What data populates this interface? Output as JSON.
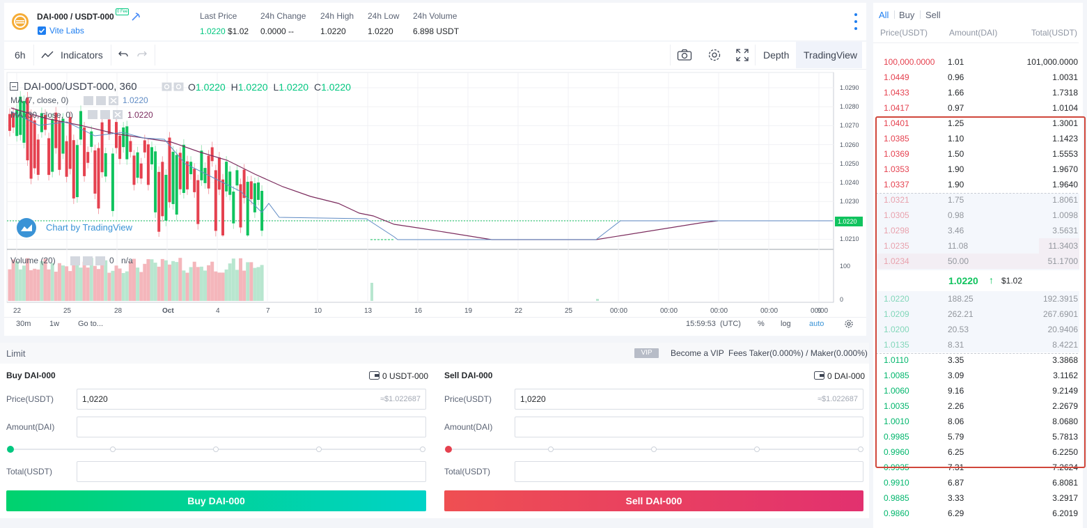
{
  "header": {
    "pair": "DAI-000 / USDT-000",
    "fee_badge": "0 Fee",
    "issuer": "Vite Labs",
    "stats": [
      {
        "label": "Last Price",
        "value": "1.0220",
        "extra": "$1.02"
      },
      {
        "label": "24h Change",
        "value": "0.0000 --"
      },
      {
        "label": "24h High",
        "value": "1.0220"
      },
      {
        "label": "24h Low",
        "value": "1.0220"
      },
      {
        "label": "24h Volume",
        "value": "6.898 USDT"
      }
    ]
  },
  "toolbar": {
    "interval": "6h",
    "indicators": "Indicators",
    "depth": "Depth",
    "tradingview": "TradingView"
  },
  "chart": {
    "legend_symbol": "DAI-000/USDT-000, 360",
    "ohlc": {
      "o_label": "O",
      "o": "1.0220",
      "h_label": "H",
      "h": "1.0220",
      "l_label": "L",
      "l": "1.0220",
      "c_label": "C",
      "c": "1.0220"
    },
    "ma1_label": "MA (7, close, 0)",
    "ma1_value": "1.0220",
    "ma2_label": "MA (30, close, 0)",
    "ma2_value": "1.0220",
    "watermark": "Chart by TradingView",
    "volume_label": "Volume (20)",
    "volume_value": "0",
    "volume_extra": "n/a",
    "price_ticks": [
      "1.0290",
      "1.0280",
      "1.0270",
      "1.0260",
      "1.0250",
      "1.0240",
      "1.0230",
      "1.0210"
    ],
    "current_price_tag": "1.0220",
    "volume_ticks": [
      "100",
      "0"
    ],
    "time_ticks": [
      "22",
      "25",
      "28",
      "Oct",
      "4",
      "7",
      "10",
      "13",
      "16",
      "19",
      "22",
      "25",
      "00:00",
      "00:00",
      "00:00",
      "00:00",
      "00:00",
      "9"
    ],
    "bottom": {
      "r1": "30m",
      "r2": "1w",
      "goto": "Go to...",
      "time": "15:59:53",
      "tz": "(UTC)",
      "pct": "%",
      "log": "log",
      "auto": "auto"
    },
    "colors": {
      "up": "#26a69a",
      "green": "#10c35e",
      "red": "#e5414f",
      "ma1": "#5f8bc4",
      "ma2": "#7b2b5d"
    }
  },
  "limit": {
    "title": "Limit",
    "vip_badge": "VIP",
    "become_vip": "Become a VIP",
    "fees": "Fees Taker(0.000%) / Maker(0.000%)",
    "buy": {
      "title": "Buy DAI-000",
      "balance": "0 USDT-000",
      "price_label": "Price(USDT)",
      "price_value": "1,0220",
      "price_hint": "≈$1.022687",
      "amount_label": "Amount(DAI)",
      "total_label": "Total(USDT)",
      "button": "Buy DAI-000"
    },
    "sell": {
      "title": "Sell DAI-000",
      "balance": "0 DAI-000",
      "price_label": "Price(USDT)",
      "price_value": "1,0220",
      "price_hint": "≈$1.022687",
      "amount_label": "Amount(DAI)",
      "total_label": "Total(USDT)",
      "button": "Sell DAI-000"
    }
  },
  "orderbook": {
    "tabs": [
      "All",
      "Buy",
      "Sell"
    ],
    "headers": [
      "Price(USDT)",
      "Amount(DAI)",
      "Total(USDT)"
    ],
    "asks": [
      {
        "price": "100,000.0000",
        "amount": "1.01",
        "total": "101,000.0000",
        "depth": 0
      },
      {
        "price": "1.0449",
        "amount": "0.96",
        "total": "1.0031",
        "depth": 0
      },
      {
        "price": "1.0433",
        "amount": "1.66",
        "total": "1.7318",
        "depth": 0
      },
      {
        "price": "1.0417",
        "amount": "0.97",
        "total": "1.0104",
        "depth": 0
      },
      {
        "price": "1.0401",
        "amount": "1.25",
        "total": "1.3001",
        "depth": 0
      },
      {
        "price": "1.0385",
        "amount": "1.10",
        "total": "1.1423",
        "depth": 0
      },
      {
        "price": "1.0369",
        "amount": "1.50",
        "total": "1.5553",
        "depth": 0
      },
      {
        "price": "1.0353",
        "amount": "1.90",
        "total": "1.9670",
        "depth": 0
      },
      {
        "price": "1.0337",
        "amount": "1.90",
        "total": "1.9640",
        "depth": 0
      },
      {
        "price": "1.0321",
        "amount": "1.75",
        "total": "1.8061",
        "depth": 0
      },
      {
        "price": "1.0305",
        "amount": "0.98",
        "total": "1.0098",
        "depth": 0
      },
      {
        "price": "1.0298",
        "amount": "3.46",
        "total": "3.5631",
        "depth": 0
      },
      {
        "price": "1.0235",
        "amount": "11.08",
        "total": "11.3403",
        "depth": 0.2
      },
      {
        "price": "1.0234",
        "amount": "50.00",
        "total": "51.1700",
        "depth": 1.0
      }
    ],
    "mid_price": "1.0220",
    "mid_arrow": "↑",
    "mid_usd": "$1.02",
    "bids": [
      {
        "price": "1.0220",
        "amount": "188.25",
        "total": "192.3915"
      },
      {
        "price": "1.0209",
        "amount": "262.21",
        "total": "267.6901"
      },
      {
        "price": "1.0200",
        "amount": "20.53",
        "total": "20.9406"
      },
      {
        "price": "1.0135",
        "amount": "8.31",
        "total": "8.4221"
      },
      {
        "price": "1.0110",
        "amount": "3.35",
        "total": "3.3868"
      },
      {
        "price": "1.0085",
        "amount": "3.09",
        "total": "3.1162"
      },
      {
        "price": "1.0060",
        "amount": "9.16",
        "total": "9.2149"
      },
      {
        "price": "1.0035",
        "amount": "2.26",
        "total": "2.2679"
      },
      {
        "price": "1.0010",
        "amount": "8.06",
        "total": "8.0680"
      },
      {
        "price": "0.9985",
        "amount": "5.79",
        "total": "5.7813"
      },
      {
        "price": "0.9960",
        "amount": "6.25",
        "total": "6.2250"
      },
      {
        "price": "0.9935",
        "amount": "7.31",
        "total": "7.2624"
      },
      {
        "price": "0.9910",
        "amount": "6.87",
        "total": "6.8081"
      },
      {
        "price": "0.9885",
        "amount": "3.33",
        "total": "3.2917"
      },
      {
        "price": "0.9860",
        "amount": "6.29",
        "total": "6.2019"
      }
    ]
  }
}
